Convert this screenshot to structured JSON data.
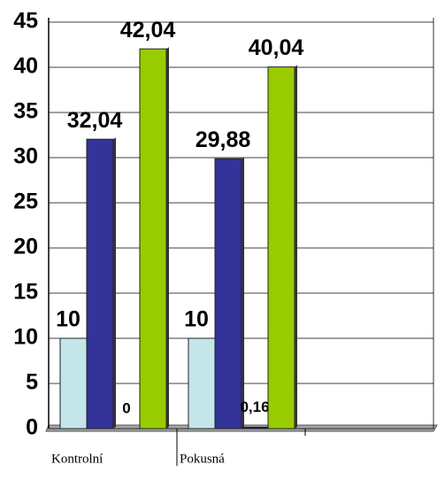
{
  "chart_data": {
    "type": "bar",
    "categories": [
      "Kontrolní",
      "Pokusná",
      null
    ],
    "series": [
      {
        "color": "#c4e6ea",
        "values": [
          10,
          10,
          null
        ]
      },
      {
        "color": "#333399",
        "values": [
          32.04,
          29.88,
          null
        ],
        "value_labels": [
          "32,04",
          "29,88",
          null
        ]
      },
      {
        "color": "#1a1a4d",
        "values": [
          0,
          0.16,
          null
        ],
        "value_labels": [
          "0",
          "0,16",
          null
        ]
      },
      {
        "color": "#99cc00",
        "values": [
          42.04,
          40.04,
          null
        ],
        "value_labels": [
          "42,04",
          "40,04",
          null
        ]
      }
    ],
    "ylim": [
      0,
      45
    ],
    "yticks": [
      0,
      5,
      10,
      15,
      20,
      25,
      30,
      35,
      40,
      45
    ],
    "grid": true
  }
}
